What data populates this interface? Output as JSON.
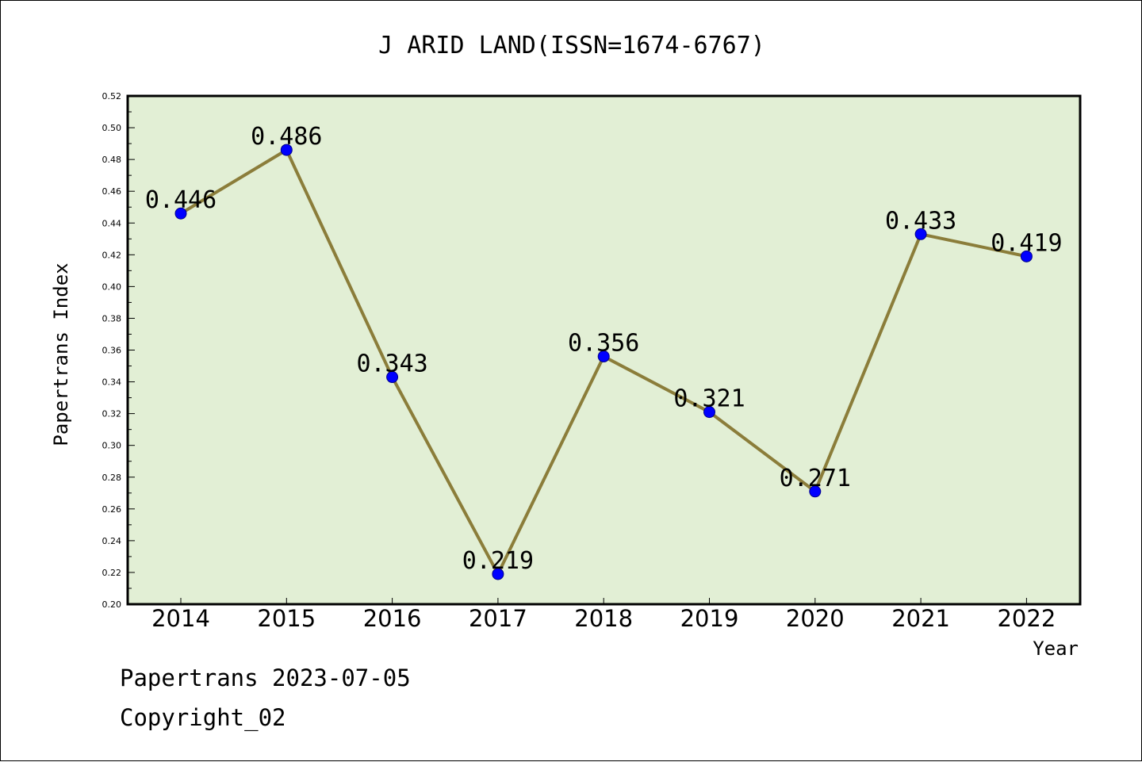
{
  "chart_data": {
    "type": "line",
    "title": "J ARID LAND(ISSN=1674-6767)",
    "xlabel": "Year",
    "ylabel": "Papertrans Index",
    "categories": [
      "2014",
      "2015",
      "2016",
      "2017",
      "2018",
      "2019",
      "2020",
      "2021",
      "2022"
    ],
    "series": [
      {
        "values": [
          0.446,
          0.486,
          0.343,
          0.219,
          0.356,
          0.321,
          0.271,
          0.433,
          0.419
        ],
        "labels": [
          "0.446",
          "0.486",
          "0.343",
          "0.219",
          "0.356",
          "0.321",
          "0.271",
          "0.433",
          "0.419"
        ]
      }
    ],
    "ylim": [
      0.2,
      0.52
    ],
    "yticks": [
      "0.20",
      "0.22",
      "0.24",
      "0.26",
      "0.28",
      "0.30",
      "0.32",
      "0.34",
      "0.36",
      "0.38",
      "0.40",
      "0.42",
      "0.44",
      "0.46",
      "0.48",
      "0.50",
      "0.52"
    ],
    "grid": false,
    "colors": {
      "plot_background": "#e2efd5",
      "line": "#8b7d3a",
      "marker": "#0000ff",
      "axis": "#000000"
    }
  },
  "footer": {
    "line1": "Papertrans 2023-07-05",
    "line2": "Copyright_02"
  }
}
